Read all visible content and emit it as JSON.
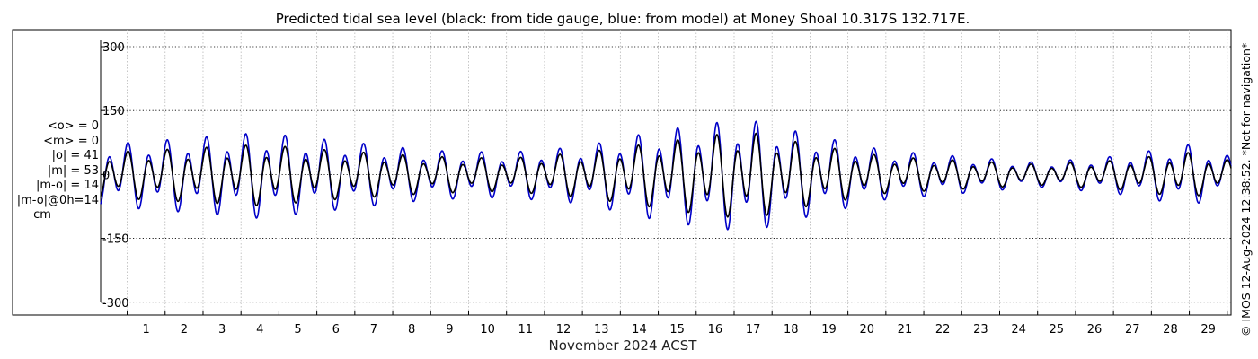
{
  "chart_data": {
    "type": "line",
    "title": "Predicted tidal sea level (black: from tide gauge, blue: from model) at Money Shoal 10.317S 132.717E.",
    "xlabel": "November 2024 ACST",
    "ylabel": "",
    "x_tick_labels": [
      "1",
      "2",
      "3",
      "4",
      "5",
      "6",
      "7",
      "8",
      "9",
      "10",
      "11",
      "12",
      "13",
      "14",
      "15",
      "16",
      "17",
      "18",
      "19",
      "20",
      "21",
      "22",
      "23",
      "24",
      "25",
      "26",
      "27",
      "28",
      "29"
    ],
    "x_range_days": [
      0.3,
      30.1
    ],
    "y_ticks": [
      "300",
      "150",
      "0",
      "-150",
      "-300"
    ],
    "y_tick_values": [
      300,
      150,
      0,
      -150,
      -300
    ],
    "ylim": [
      -330,
      340
    ],
    "grid": true,
    "right_annotation": "© IMOS 12-Aug-2024 12:38:52. *Not for navigation*",
    "stats": [
      "<o> = 0",
      "<m> = 0",
      "|o| = 41",
      "|m| = 53",
      "|m-o| = 14",
      "|m-o|@0h=14",
      "cm"
    ],
    "series": [
      {
        "color": "#000000",
        "envelope": [
          [
            0.3,
            55
          ],
          [
            2.5,
            65
          ],
          [
            4.5,
            75
          ],
          [
            6.5,
            60
          ],
          [
            9,
            45
          ],
          [
            11,
            40
          ],
          [
            13,
            55
          ],
          [
            15,
            80
          ],
          [
            16.5,
            100
          ],
          [
            17.5,
            105
          ],
          [
            19,
            75
          ],
          [
            21,
            45
          ],
          [
            23,
            35
          ],
          [
            25,
            25
          ],
          [
            27,
            35
          ],
          [
            29,
            55
          ],
          [
            30.1,
            35
          ]
        ]
      },
      {
        "color": "#0000c8",
        "envelope": [
          [
            0.3,
            75
          ],
          [
            2.5,
            90
          ],
          [
            4.5,
            105
          ],
          [
            6.5,
            85
          ],
          [
            9,
            60
          ],
          [
            11,
            55
          ],
          [
            13,
            70
          ],
          [
            15,
            110
          ],
          [
            16.5,
            130
          ],
          [
            17.5,
            135
          ],
          [
            19,
            100
          ],
          [
            21,
            60
          ],
          [
            23,
            45
          ],
          [
            25,
            30
          ],
          [
            27,
            45
          ],
          [
            29,
            75
          ],
          [
            30.1,
            45
          ]
        ]
      }
    ]
  }
}
